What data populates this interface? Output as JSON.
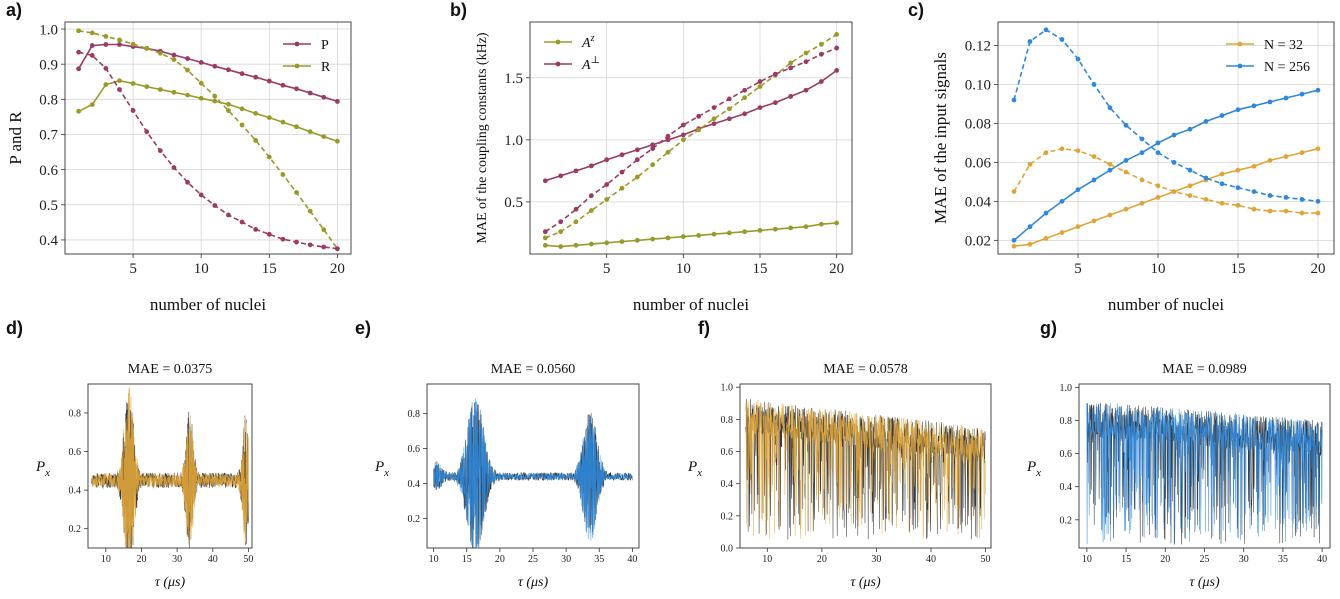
{
  "colors": {
    "magenta": "#9b3a63",
    "olive": "#9a9a2c",
    "orange": "#e0a53a",
    "blue": "#2f88db",
    "dark": "#3a3a3a"
  },
  "chart_data": [
    {
      "id": "a",
      "panel_label": "a)",
      "type": "line",
      "ylabel": "P and R",
      "xlabel": "number of nuclei",
      "xlim": [
        0,
        21
      ],
      "ylim": [
        0.36,
        1.02
      ],
      "xticks": [
        "5",
        "10",
        "15",
        "20"
      ],
      "yticks": [
        "0.4",
        "0.5",
        "0.6",
        "0.7",
        "0.8",
        "0.9",
        "1.0"
      ],
      "grid": true,
      "legend_position": "top-right",
      "legend": [
        "P",
        "R"
      ],
      "x": [
        1,
        2,
        3,
        4,
        5,
        6,
        7,
        8,
        9,
        10,
        11,
        12,
        13,
        14,
        15,
        16,
        17,
        18,
        19,
        20
      ],
      "series": [
        {
          "name": "P",
          "color": "magenta",
          "dash": false,
          "values": [
            0.887,
            0.953,
            0.956,
            0.956,
            0.95,
            0.945,
            0.937,
            0.926,
            0.916,
            0.905,
            0.894,
            0.884,
            0.873,
            0.863,
            0.852,
            0.84,
            0.83,
            0.818,
            0.806,
            0.794
          ]
        },
        {
          "name": "R",
          "color": "olive",
          "dash": false,
          "values": [
            0.766,
            0.785,
            0.842,
            0.853,
            0.845,
            0.836,
            0.828,
            0.82,
            0.812,
            0.803,
            0.795,
            0.786,
            0.773,
            0.76,
            0.748,
            0.735,
            0.722,
            0.708,
            0.694,
            0.681
          ]
        },
        {
          "color": "olive",
          "dash": true,
          "values": [
            0.995,
            0.989,
            0.979,
            0.969,
            0.957,
            0.945,
            0.931,
            0.913,
            0.883,
            0.846,
            0.809,
            0.768,
            0.727,
            0.683,
            0.636,
            0.586,
            0.535,
            0.482,
            0.429,
            0.375
          ]
        },
        {
          "color": "magenta",
          "dash": true,
          "values": [
            0.934,
            0.925,
            0.888,
            0.828,
            0.768,
            0.708,
            0.654,
            0.606,
            0.564,
            0.528,
            0.498,
            0.471,
            0.451,
            0.43,
            0.416,
            0.402,
            0.394,
            0.386,
            0.38,
            0.375
          ]
        }
      ]
    },
    {
      "id": "b",
      "panel_label": "b)",
      "type": "line",
      "ylabel": "MAE of the coupling constants (kHz)",
      "xlabel": "number of nuclei",
      "xlim": [
        0,
        21
      ],
      "ylim": [
        0.08,
        1.95
      ],
      "xticks": [
        "5",
        "10",
        "15",
        "20"
      ],
      "yticks": [
        "0.5",
        "1.0",
        "1.5"
      ],
      "grid": true,
      "legend_position": "top-left",
      "legend_base": [
        "A",
        "A"
      ],
      "legend_sup": [
        "z",
        "⊥"
      ],
      "x": [
        1,
        2,
        3,
        4,
        5,
        6,
        7,
        8,
        9,
        10,
        11,
        12,
        13,
        14,
        15,
        16,
        17,
        18,
        19,
        20
      ],
      "series": [
        {
          "name": "A^z",
          "color": "olive",
          "dash": false,
          "values": [
            0.15,
            0.14,
            0.15,
            0.16,
            0.17,
            0.18,
            0.19,
            0.2,
            0.21,
            0.22,
            0.23,
            0.24,
            0.25,
            0.26,
            0.27,
            0.28,
            0.29,
            0.3,
            0.32,
            0.33
          ]
        },
        {
          "name": "A^⊥",
          "color": "magenta",
          "dash": false,
          "values": [
            0.67,
            0.71,
            0.75,
            0.79,
            0.84,
            0.88,
            0.92,
            0.96,
            1.0,
            1.04,
            1.09,
            1.13,
            1.17,
            1.21,
            1.26,
            1.3,
            1.35,
            1.4,
            1.47,
            1.56
          ]
        },
        {
          "color": "olive",
          "dash": true,
          "values": [
            0.21,
            0.26,
            0.34,
            0.43,
            0.52,
            0.61,
            0.7,
            0.8,
            0.9,
            1.0,
            1.08,
            1.17,
            1.25,
            1.34,
            1.43,
            1.52,
            1.62,
            1.7,
            1.77,
            1.85
          ]
        },
        {
          "color": "magenta",
          "dash": true,
          "values": [
            0.26,
            0.34,
            0.44,
            0.55,
            0.64,
            0.74,
            0.84,
            0.93,
            1.03,
            1.12,
            1.19,
            1.26,
            1.33,
            1.4,
            1.47,
            1.53,
            1.58,
            1.63,
            1.69,
            1.74
          ]
        }
      ]
    },
    {
      "id": "c",
      "panel_label": "c)",
      "type": "line",
      "ylabel": "MAE of the input signals",
      "xlabel": "number of nuclei",
      "xlim": [
        0,
        21
      ],
      "ylim": [
        0.013,
        0.132
      ],
      "xticks": [
        "5",
        "10",
        "15",
        "20"
      ],
      "yticks": [
        "0.02",
        "0.04",
        "0.06",
        "0.08",
        "0.10",
        "0.12"
      ],
      "grid": true,
      "legend_position": "top-right",
      "legend": [
        "N = 32",
        "N = 256"
      ],
      "x": [
        1,
        2,
        3,
        4,
        5,
        6,
        7,
        8,
        9,
        10,
        11,
        12,
        13,
        14,
        15,
        16,
        17,
        18,
        19,
        20
      ],
      "series": [
        {
          "name": "N = 32",
          "color": "orange",
          "dash": false,
          "values": [
            0.017,
            0.018,
            0.021,
            0.024,
            0.027,
            0.03,
            0.033,
            0.036,
            0.039,
            0.042,
            0.045,
            0.048,
            0.051,
            0.054,
            0.056,
            0.058,
            0.061,
            0.063,
            0.065,
            0.067
          ]
        },
        {
          "name": "N = 256",
          "color": "blue",
          "dash": false,
          "values": [
            0.02,
            0.027,
            0.034,
            0.04,
            0.046,
            0.051,
            0.056,
            0.061,
            0.065,
            0.07,
            0.074,
            0.077,
            0.081,
            0.084,
            0.087,
            0.089,
            0.091,
            0.093,
            0.095,
            0.097
          ]
        },
        {
          "color": "orange",
          "dash": true,
          "values": [
            0.045,
            0.059,
            0.065,
            0.067,
            0.066,
            0.063,
            0.059,
            0.055,
            0.051,
            0.048,
            0.045,
            0.043,
            0.041,
            0.039,
            0.038,
            0.036,
            0.035,
            0.035,
            0.034,
            0.034
          ]
        },
        {
          "color": "blue",
          "dash": true,
          "values": [
            0.092,
            0.122,
            0.128,
            0.123,
            0.113,
            0.1,
            0.088,
            0.079,
            0.072,
            0.065,
            0.06,
            0.056,
            0.052,
            0.049,
            0.047,
            0.045,
            0.043,
            0.042,
            0.041,
            0.04
          ]
        }
      ]
    },
    {
      "id": "d",
      "panel_label": "d)",
      "type": "line",
      "title": "MAE = 0.0375",
      "ylabel_base": "P",
      "ylabel_sub": "x",
      "xlabel": "τ (μs)",
      "xlim": [
        5,
        51
      ],
      "ylim": [
        0.1,
        0.95
      ],
      "xticks": [
        "10",
        "20",
        "30",
        "40",
        "50"
      ],
      "yticks": [
        "0.2",
        "0.4",
        "0.6",
        "0.8"
      ],
      "grid": false,
      "signal": {
        "color": "orange",
        "kind": "bursts",
        "baseline": 0.45,
        "noise": 0.035,
        "bursts": [
          [
            16.5,
            0.45,
            1.3
          ],
          [
            33.5,
            0.33,
            1.0
          ],
          [
            49.2,
            0.32,
            0.8
          ]
        ]
      }
    },
    {
      "id": "e",
      "panel_label": "e)",
      "type": "line",
      "title": "MAE = 0.0560",
      "ylabel_base": "P",
      "ylabel_sub": "x",
      "xlabel": "τ (μs)",
      "xlim": [
        9,
        41
      ],
      "ylim": [
        0.03,
        0.97
      ],
      "xticks": [
        "10",
        "15",
        "20",
        "25",
        "30",
        "35",
        "40"
      ],
      "yticks": [
        "0.2",
        "0.4",
        "0.6",
        "0.8"
      ],
      "grid": false,
      "signal": {
        "color": "blue",
        "kind": "bursts",
        "baseline": 0.44,
        "noise": 0.02,
        "bursts": [
          [
            16.3,
            0.45,
            1.2
          ],
          [
            33.6,
            0.36,
            1.0
          ],
          [
            10.5,
            0.07,
            0.7
          ]
        ]
      }
    },
    {
      "id": "f",
      "panel_label": "f)",
      "type": "line",
      "title": "MAE = 0.0578",
      "ylabel_base": "P",
      "ylabel_sub": "x",
      "xlabel": "τ (μs)",
      "xlim": [
        5,
        51
      ],
      "ylim": [
        0.0,
        1.02
      ],
      "xticks": [
        "10",
        "20",
        "30",
        "40",
        "50"
      ],
      "yticks": [
        "0.0",
        "0.2",
        "0.4",
        "0.6",
        "0.8",
        "1.0"
      ],
      "grid": false,
      "signal": {
        "color": "orange",
        "kind": "dips",
        "top_start": 0.93,
        "top_end": 0.75
      }
    },
    {
      "id": "g",
      "panel_label": "g)",
      "type": "line",
      "title": "MAE = 0.0989",
      "ylabel_base": "P",
      "ylabel_sub": "x",
      "xlabel": "τ (μs)",
      "xlim": [
        9,
        41
      ],
      "ylim": [
        0.03,
        1.02
      ],
      "xticks": [
        "10",
        "15",
        "20",
        "25",
        "30",
        "35",
        "40"
      ],
      "yticks": [
        "0.2",
        "0.4",
        "0.6",
        "0.8",
        "1.0"
      ],
      "grid": false,
      "signal": {
        "color": "blue",
        "kind": "dips",
        "top_start": 0.92,
        "top_end": 0.8
      }
    }
  ]
}
